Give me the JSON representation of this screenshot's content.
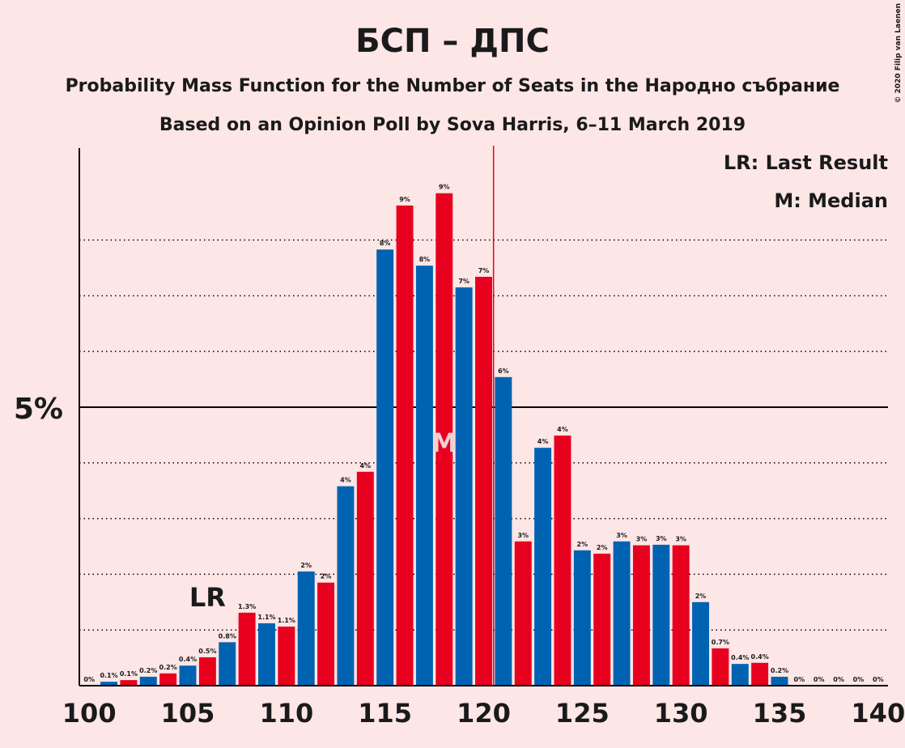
{
  "chart_data": {
    "type": "bar",
    "title": "БСП – ДПС",
    "subtitle": "Probability Mass Function for the Number of Seats in the Народно събрание",
    "subtitle2": "Based on an Opinion Poll by Sova Harris, 6–11 March 2019",
    "copyright": "© 2020 Filip van Laenen",
    "categories": [
      100,
      101,
      102,
      103,
      104,
      105,
      106,
      107,
      108,
      109,
      110,
      111,
      112,
      113,
      114,
      115,
      116,
      117,
      118,
      119,
      120,
      121,
      122,
      123,
      124,
      125,
      126,
      127,
      128,
      129,
      130,
      131,
      132,
      133,
      134,
      135,
      136,
      137,
      138,
      139,
      140
    ],
    "values": [
      0,
      0.07,
      0.1,
      0.16,
      0.22,
      0.36,
      0.51,
      0.78,
      1.31,
      1.12,
      1.06,
      2.05,
      1.85,
      3.58,
      3.84,
      7.83,
      8.62,
      7.54,
      8.84,
      7.15,
      7.34,
      5.54,
      2.59,
      4.27,
      4.49,
      2.43,
      2.37,
      2.59,
      2.52,
      2.53,
      2.52,
      1.5,
      0.67,
      0.39,
      0.41,
      0.16,
      0,
      0,
      0,
      0,
      0
    ],
    "value_labels": [
      "0%",
      "0.1%",
      "0.1%",
      "0.2%",
      "0.2%",
      "0.4%",
      "0.5%",
      "0.8%",
      "1.3%",
      "1.1%",
      "1.1%",
      "2%",
      "2%",
      "4%",
      "4%",
      "8%",
      "9%",
      "8%",
      "9%",
      "7%",
      "7%",
      "6%",
      "3%",
      "4%",
      "4%",
      "2%",
      "2%",
      "3%",
      "3%",
      "3%",
      "3%",
      "2%",
      "0.7%",
      "0.4%",
      "0.4%",
      "0.2%",
      "0%",
      "0%",
      "0%",
      "0%",
      "0%"
    ],
    "bar_colors": [
      "#e8001f",
      "#0063b1"
    ],
    "xlim": [
      99.5,
      140.5
    ],
    "xticks": [
      100,
      105,
      110,
      115,
      120,
      125,
      130,
      135,
      140
    ],
    "ylim": [
      0,
      9.65
    ],
    "yticks": [
      {
        "value": 5,
        "label": "5%"
      }
    ],
    "minor_yticks": [
      1,
      2,
      3,
      4,
      6,
      7,
      8
    ],
    "majority_line": 120.5,
    "last_result": 106,
    "last_result_label": "LR",
    "median": 118,
    "median_label": "M",
    "legend": [
      "LR: Last Result",
      "M: Median"
    ]
  }
}
